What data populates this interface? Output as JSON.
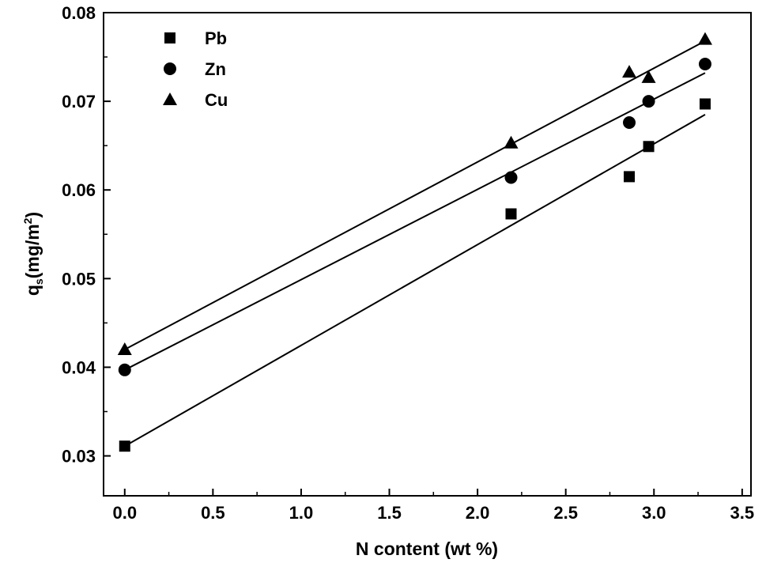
{
  "chart_data": {
    "type": "scatter",
    "title": "",
    "xlabel": "N content (wt %)",
    "ylabel_main": "q",
    "ylabel_sub": "s",
    "ylabel_unit": "(mg/m",
    "ylabel_sup": "2",
    "ylabel_close": ")",
    "xlim": [
      -0.12,
      3.55
    ],
    "ylim": [
      0.0255,
      0.08
    ],
    "x_ticks": [
      0.0,
      0.5,
      1.0,
      1.5,
      2.0,
      2.5,
      3.0,
      3.5
    ],
    "x_tick_labels": [
      "0.0",
      "0.5",
      "1.0",
      "1.5",
      "2.0",
      "2.5",
      "3.0",
      "3.5"
    ],
    "y_ticks": [
      0.03,
      0.04,
      0.05,
      0.06,
      0.07,
      0.08
    ],
    "y_tick_labels": [
      "0.03",
      "0.04",
      "0.05",
      "0.06",
      "0.07",
      "0.08"
    ],
    "legend_position": "top-left",
    "grid": false,
    "series": [
      {
        "name": "Pb",
        "marker": "square",
        "color": "#000000",
        "x": [
          0.0,
          2.19,
          2.86,
          2.97,
          3.29
        ],
        "y": [
          0.0311,
          0.0573,
          0.0615,
          0.0649,
          0.0697
        ],
        "fit": {
          "x": [
            0.0,
            3.29
          ],
          "y": [
            0.0311,
            0.0685
          ]
        }
      },
      {
        "name": "Zn",
        "marker": "circle",
        "color": "#000000",
        "x": [
          0.0,
          2.19,
          2.86,
          2.97,
          3.29
        ],
        "y": [
          0.0397,
          0.0614,
          0.0676,
          0.07,
          0.0742
        ],
        "fit": {
          "x": [
            0.0,
            3.29
          ],
          "y": [
            0.0397,
            0.0732
          ]
        }
      },
      {
        "name": "Cu",
        "marker": "triangle",
        "color": "#000000",
        "x": [
          0.0,
          2.19,
          2.86,
          2.97,
          3.29
        ],
        "y": [
          0.042,
          0.0653,
          0.0733,
          0.0727,
          0.077
        ],
        "fit": {
          "x": [
            0.0,
            3.29
          ],
          "y": [
            0.042,
            0.0768
          ]
        }
      }
    ]
  }
}
